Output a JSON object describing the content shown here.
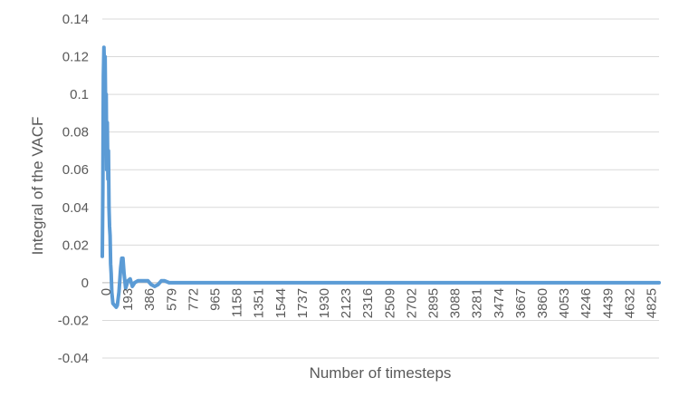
{
  "chart_data": {
    "type": "line",
    "title": "",
    "xlabel": "Number of timesteps",
    "ylabel": "Integral of the VACF",
    "ylim": [
      -0.04,
      0.14
    ],
    "xlim": [
      0,
      5000
    ],
    "grid": "horizontal",
    "legend": "none",
    "y_ticks": [
      "-0.04",
      "-0.02",
      "0",
      "0.02",
      "0.04",
      "0.06",
      "0.08",
      "0.1",
      "0.12",
      "0.14"
    ],
    "x_ticks": [
      "0",
      "193",
      "386",
      "579",
      "772",
      "965",
      "1158",
      "1351",
      "1544",
      "1737",
      "1930",
      "2123",
      "2316",
      "2509",
      "2702",
      "2895",
      "3088",
      "3281",
      "3474",
      "3667",
      "3860",
      "4053",
      "4246",
      "4439",
      "4632",
      "4825"
    ],
    "series": [
      {
        "color": "#5b9bd5",
        "points": [
          [
            0,
            0.014
          ],
          [
            5,
            0.05
          ],
          [
            10,
            0.11
          ],
          [
            15,
            0.125
          ],
          [
            20,
            0.11
          ],
          [
            25,
            0.12
          ],
          [
            30,
            0.09
          ],
          [
            35,
            0.1
          ],
          [
            40,
            0.06
          ],
          [
            45,
            0.085
          ],
          [
            50,
            0.055
          ],
          [
            55,
            0.07
          ],
          [
            60,
            0.04
          ],
          [
            65,
            0.03
          ],
          [
            70,
            0.025
          ],
          [
            75,
            0.01
          ],
          [
            80,
            0.005
          ],
          [
            85,
            -0.005
          ],
          [
            95,
            -0.011
          ],
          [
            110,
            -0.012
          ],
          [
            125,
            -0.013
          ],
          [
            135,
            -0.012
          ],
          [
            150,
            -0.005
          ],
          [
            165,
            0.008
          ],
          [
            175,
            0.013
          ],
          [
            185,
            0.013
          ],
          [
            195,
            0.005
          ],
          [
            210,
            -0.003
          ],
          [
            230,
            0.001
          ],
          [
            250,
            0.002
          ],
          [
            270,
            -0.002
          ],
          [
            290,
            0.0
          ],
          [
            320,
            0.001
          ],
          [
            350,
            0.001
          ],
          [
            380,
            0.001
          ],
          [
            410,
            0.001
          ],
          [
            440,
            -0.001
          ],
          [
            470,
            -0.002
          ],
          [
            500,
            -0.001
          ],
          [
            530,
            0.001
          ],
          [
            560,
            0.001
          ],
          [
            600,
            0.0
          ],
          [
            700,
            0.0
          ],
          [
            1000,
            0.0
          ],
          [
            1500,
            0.0
          ],
          [
            2000,
            0.0
          ],
          [
            2500,
            0.0
          ],
          [
            3000,
            0.0
          ],
          [
            3500,
            0.0
          ],
          [
            4000,
            0.0
          ],
          [
            4500,
            0.0
          ],
          [
            5000,
            0.0
          ]
        ]
      }
    ]
  }
}
